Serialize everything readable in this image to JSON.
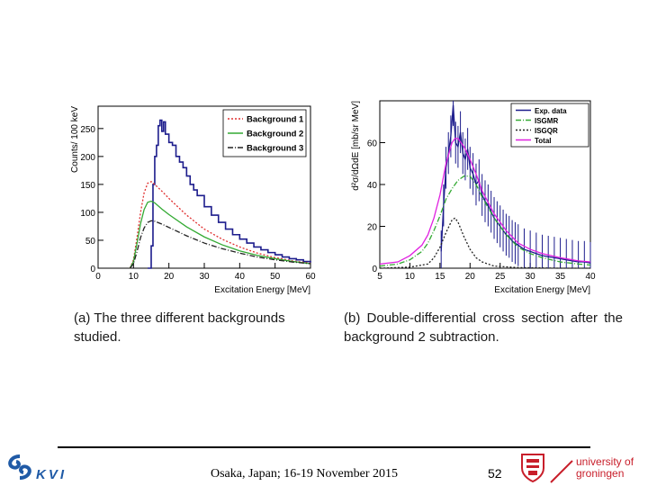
{
  "chart_data": [
    {
      "type": "line",
      "panel": "a",
      "xlabel": "Excitation Energy [MeV]",
      "ylabel": "Counts/ 100 keV",
      "xlim": [
        0,
        60
      ],
      "ylim": [
        0,
        290
      ],
      "xticks": [
        0,
        10,
        20,
        30,
        40,
        50,
        60
      ],
      "yticks": [
        0,
        50,
        100,
        150,
        200,
        250
      ],
      "legend_position": "top-right",
      "series": [
        {
          "name": "Exp. data",
          "style": "histogram",
          "color": "#1c1c8c",
          "x": [
            14,
            15,
            15.5,
            16,
            16.5,
            17,
            17.5,
            18,
            18.5,
            19,
            20,
            21,
            22,
            23,
            24,
            25,
            26,
            27,
            28,
            30,
            32,
            34,
            36,
            38,
            40,
            42,
            44,
            46,
            48,
            50,
            52,
            54,
            56,
            58,
            60
          ],
          "y": [
            0,
            40,
            150,
            200,
            220,
            255,
            265,
            245,
            262,
            240,
            225,
            220,
            200,
            190,
            180,
            165,
            150,
            140,
            130,
            110,
            95,
            82,
            70,
            60,
            52,
            45,
            38,
            33,
            28,
            24,
            20,
            17,
            15,
            12,
            10
          ]
        },
        {
          "name": "Background 1",
          "style": "dotted",
          "color": "#e03030",
          "x": [
            9,
            10,
            11,
            12,
            13,
            14,
            15,
            16,
            18,
            20,
            25,
            30,
            35,
            40,
            45,
            50,
            55,
            60
          ],
          "y": [
            0,
            15,
            55,
            100,
            135,
            152,
            155,
            150,
            138,
            125,
            95,
            70,
            52,
            38,
            27,
            19,
            13,
            9
          ]
        },
        {
          "name": "Background 2",
          "style": "solid",
          "color": "#33aa33",
          "x": [
            9,
            10,
            11,
            12,
            13,
            14,
            15,
            16,
            18,
            20,
            25,
            30,
            35,
            40,
            45,
            50,
            55,
            60
          ],
          "y": [
            0,
            12,
            45,
            80,
            105,
            118,
            120,
            117,
            106,
            96,
            74,
            56,
            42,
            31,
            23,
            17,
            12,
            8
          ]
        },
        {
          "name": "Background 3",
          "style": "dash-dot",
          "color": "#222222",
          "x": [
            9,
            10,
            11,
            12,
            13,
            14,
            15,
            16,
            18,
            20,
            25,
            30,
            35,
            40,
            45,
            50,
            55,
            60
          ],
          "y": [
            0,
            8,
            30,
            55,
            72,
            82,
            85,
            84,
            79,
            73,
            58,
            45,
            35,
            27,
            20,
            15,
            11,
            8
          ]
        }
      ],
      "caption": "(a)  The three different backgrounds studied."
    },
    {
      "type": "line",
      "panel": "b",
      "xlabel": "Excitation Energy [MeV]",
      "ylabel": "d²σ/dΩdE [mb/sr MeV]",
      "xlim": [
        5,
        40
      ],
      "ylim": [
        0,
        80
      ],
      "xticks": [
        5,
        10,
        15,
        20,
        25,
        30,
        35,
        40
      ],
      "yticks": [
        0,
        20,
        40,
        60
      ],
      "legend_position": "top-right",
      "series": [
        {
          "name": "Exp. data",
          "style": "errorbars",
          "color": "#1c1c8c",
          "x": [
            15.2,
            15.6,
            16,
            16.4,
            16.8,
            17.2,
            17.6,
            18,
            18.4,
            18.8,
            19.2,
            19.6,
            20,
            20.5,
            21,
            21.5,
            22,
            22.5,
            23,
            23.5,
            24,
            24.5,
            25,
            25.5,
            26,
            26.5,
            27,
            27.5,
            28,
            29,
            30,
            31,
            32,
            33,
            34,
            35,
            36,
            37,
            38,
            39,
            40
          ],
          "y": [
            8,
            30,
            48,
            55,
            63,
            78,
            60,
            58,
            65,
            55,
            52,
            57,
            48,
            45,
            40,
            42,
            35,
            32,
            30,
            27,
            24,
            22,
            20,
            18,
            16,
            15,
            13,
            12,
            11,
            9,
            8,
            7,
            6,
            5.5,
            5,
            4.5,
            4,
            3.5,
            3,
            3,
            2.5
          ],
          "yerr": 10
        },
        {
          "name": "ISGMR",
          "style": "dash-dot",
          "color": "#33aa33",
          "x": [
            5,
            8,
            10,
            12,
            13,
            14,
            15,
            16,
            17,
            18,
            19,
            20,
            21,
            22,
            24,
            26,
            28,
            30,
            32,
            35,
            38,
            40
          ],
          "y": [
            1,
            2,
            4,
            8,
            12,
            18,
            25,
            33,
            38,
            42,
            44,
            44,
            40,
            34,
            24,
            16,
            10,
            7,
            5,
            3,
            2,
            1.5
          ]
        },
        {
          "name": "ISGQR",
          "style": "dotted",
          "color": "#222222",
          "x": [
            5,
            10,
            13,
            14,
            15,
            16,
            17,
            17.5,
            18,
            19,
            20,
            21,
            22,
            24,
            28,
            35,
            40
          ],
          "y": [
            0,
            0.5,
            2,
            5,
            10,
            17,
            23,
            24,
            22,
            15,
            9,
            5,
            3,
            1,
            0.3,
            0,
            0
          ]
        },
        {
          "name": "Total",
          "style": "solid",
          "color": "#e020e0",
          "x": [
            5,
            8,
            10,
            12,
            13,
            14,
            15,
            16,
            17,
            17.5,
            18,
            19,
            20,
            21,
            22,
            24,
            26,
            28,
            30,
            32,
            35,
            38,
            40
          ],
          "y": [
            2,
            3,
            6,
            11,
            16,
            24,
            35,
            50,
            60,
            62,
            62,
            58,
            52,
            45,
            37,
            26,
            18,
            12,
            9,
            7,
            5,
            3.5,
            3
          ]
        }
      ],
      "caption": "(b)  Double-differential cross section after the background 2 subtraction."
    }
  ],
  "captions": {
    "a": "(a)  The three different backgrounds studied.",
    "b": "(b)  Double-differential cross section after the background 2 subtraction."
  },
  "footer": {
    "event": "Osaka, Japan; 16-19 November 2015",
    "page_number": "52",
    "kvi_logo_text": "KVI",
    "kvi_icon": "kvi-swirl-icon",
    "university_logo_text_line1": "university of",
    "university_logo_text_line2": "groningen",
    "university_icon": "groningen-crest-icon"
  }
}
